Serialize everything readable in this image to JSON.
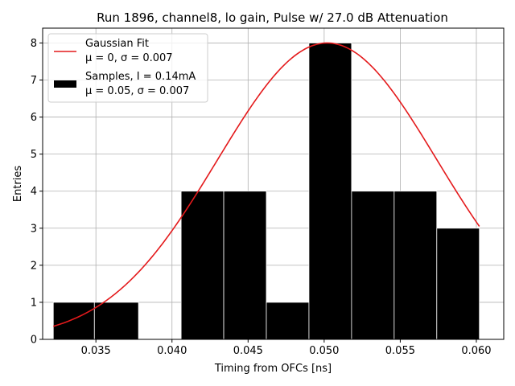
{
  "chart_data": {
    "type": "bar",
    "title": "Run 1896, channel8, lo gain, Pulse w/ 27.0 dB Attenuation",
    "xlabel": "Timing from OFCs [ns]",
    "ylabel": "Entries",
    "xlim": [
      0.0315,
      0.0618
    ],
    "ylim": [
      0,
      8.4
    ],
    "grid": true,
    "legend_position": "top-left",
    "x_ticks": [
      0.035,
      0.04,
      0.045,
      0.05,
      0.055,
      0.06
    ],
    "x_tick_labels": [
      "0.035",
      "0.040",
      "0.045",
      "0.050",
      "0.055",
      "0.060"
    ],
    "y_ticks": [
      0,
      1,
      2,
      3,
      4,
      5,
      6,
      7,
      8
    ],
    "y_tick_labels": [
      "0",
      "1",
      "2",
      "3",
      "4",
      "5",
      "6",
      "7",
      "8"
    ],
    "histogram": {
      "name_line1": "Samples, I = 0.14mA",
      "name_line2": "μ = 0.05, σ = 0.007",
      "color": "#000000",
      "bin_edges": [
        0.0322,
        0.0349,
        0.0378,
        0.0406,
        0.0434,
        0.0462,
        0.049,
        0.0518,
        0.0546,
        0.0574,
        0.0602
      ],
      "counts": [
        1,
        1,
        0,
        4,
        4,
        1,
        8,
        4,
        4,
        3
      ]
    },
    "fit": {
      "name_line1": "Gaussian Fit",
      "name_line2": "μ = 0, σ = 0.007",
      "color": "#e41a1c",
      "mean": 0.0502,
      "sigma": 0.0072,
      "amplitude": 8.0,
      "x_range": [
        0.0322,
        0.0602
      ]
    }
  }
}
